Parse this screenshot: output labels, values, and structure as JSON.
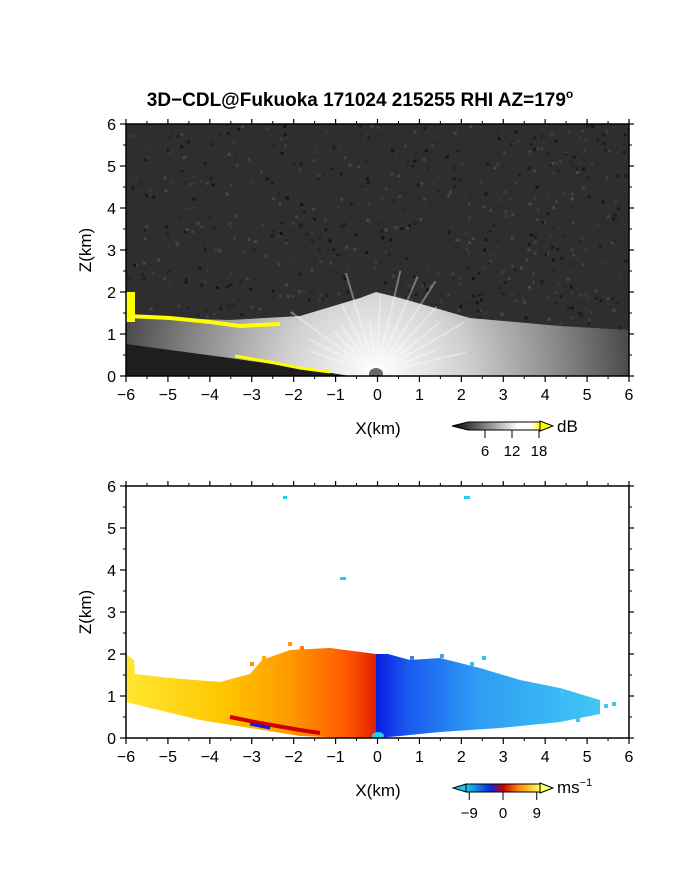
{
  "title": "3D−CDL@Fukuoka 171024 215255 RHI AZ=179",
  "title_superscript": "o",
  "chart_data": [
    {
      "type": "heatmap",
      "panel": "top",
      "quantity": "backscatter intensity",
      "xlabel": "X(km)",
      "ylabel": "Z(km)",
      "xlim": [
        -6,
        6
      ],
      "ylim": [
        0,
        6
      ],
      "xticks": [
        "−6",
        "−5",
        "−4",
        "−3",
        "−2",
        "−1",
        "0",
        "1",
        "2",
        "3",
        "4",
        "5",
        "6"
      ],
      "yticks": [
        "0",
        "1",
        "2",
        "3",
        "4",
        "5",
        "6"
      ],
      "colorbar": {
        "unit": "dB",
        "ticks": [
          "6",
          "12",
          "18"
        ],
        "tick_values": [
          6,
          12,
          18
        ],
        "range": [
          0,
          20
        ],
        "colors": [
          "#000000",
          "#ffffff",
          "#ffff00"
        ]
      },
      "features": {
        "noise_floor_color": "#2b2b2b",
        "bright_layer_top_km": 1.3,
        "high_value_color": "#ffff00"
      }
    },
    {
      "type": "heatmap",
      "panel": "bottom",
      "quantity": "radial velocity",
      "xlabel": "X(km)",
      "ylabel": "Z(km)",
      "xlim": [
        -6,
        6
      ],
      "ylim": [
        0,
        6
      ],
      "xticks": [
        "−6",
        "−5",
        "−4",
        "−3",
        "−2",
        "−1",
        "0",
        "1",
        "2",
        "3",
        "4",
        "5",
        "6"
      ],
      "yticks": [
        "0",
        "1",
        "2",
        "3",
        "4",
        "5",
        "6"
      ],
      "colorbar": {
        "unit": "ms",
        "unit_superscript": "−1",
        "ticks": [
          "−9",
          "0",
          "9"
        ],
        "tick_values": [
          -9,
          0,
          9
        ],
        "range": [
          -12,
          12
        ],
        "colors": [
          "#18c8e8",
          "#0a2ae0",
          "#e00000",
          "#ff9800",
          "#ffff60"
        ]
      },
      "features": {
        "negative_side_color": "#ff9a10",
        "positive_side_color": "#1e90ff",
        "layer_top_km": 1.9
      }
    }
  ]
}
